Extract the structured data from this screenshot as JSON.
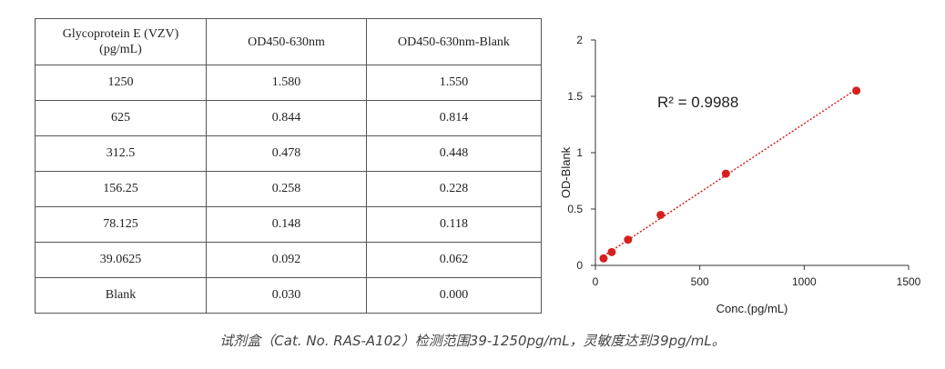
{
  "table": {
    "headers": [
      "Glycoprotein E (VZV)\n(pg/mL)",
      "OD450-630nm",
      "OD450-630nm-Blank"
    ],
    "rows": [
      [
        "1250",
        "1.580",
        "1.550"
      ],
      [
        "625",
        "0.844",
        "0.814"
      ],
      [
        "312.5",
        "0.478",
        "0.448"
      ],
      [
        "156.25",
        "0.258",
        "0.228"
      ],
      [
        "78.125",
        "0.148",
        "0.118"
      ],
      [
        "39.0625",
        "0.092",
        "0.062"
      ],
      [
        "Blank",
        "0.030",
        "0.000"
      ]
    ]
  },
  "chart_data": {
    "type": "scatter",
    "x": [
      39.0625,
      78.125,
      156.25,
      312.5,
      625,
      1250
    ],
    "y": [
      0.062,
      0.118,
      0.228,
      0.448,
      0.814,
      1.55
    ],
    "trendline": "linear",
    "annotation": "R² = 0.9988",
    "xlabel": "Conc.(pg/mL)",
    "ylabel": "OD-Blank",
    "xlim": [
      0,
      1500
    ],
    "ylim": [
      0,
      2
    ],
    "xticks": [
      0,
      500,
      1000,
      1500
    ],
    "yticks": [
      0,
      0.5,
      1,
      1.5,
      2
    ],
    "xtick_labels": [
      "0",
      "500",
      "1000",
      "1500"
    ],
    "ytick_labels": [
      "0",
      "0.5",
      "1",
      "1.5",
      "2"
    ],
    "grid": false,
    "marker_color": "#d62020",
    "trendline_color": "#d62020"
  },
  "caption": "试剂盒（Cat. No. RAS-A102）检测范围39-1250pg/mL，灵敏度达到39pg/mL。"
}
